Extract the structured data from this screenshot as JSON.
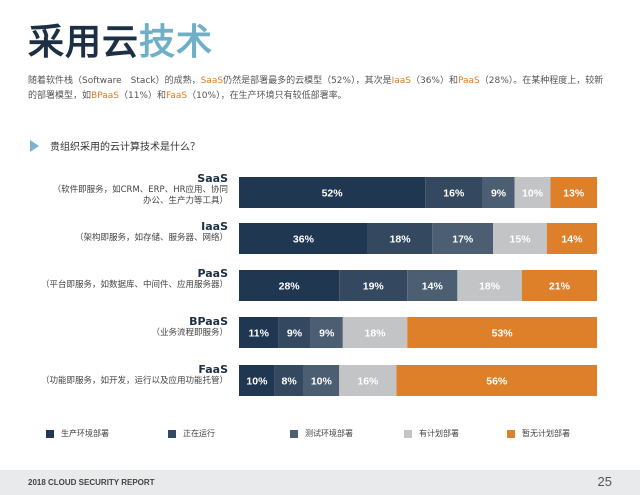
{
  "header": {
    "title_part1": "采用云",
    "title_part2": "技术"
  },
  "intro": {
    "s1": "随着软件栈（Software　Stack）的成熟，",
    "h1": "SaaS",
    "s2": "仍然是部署最多的云模型（52%），其次是",
    "h2": "IaaS",
    "s3": "（36%）和",
    "h3": "PaaS",
    "s4": "（28%）。在某种程度上，较新的部署模型，如",
    "h4": "BPaaS",
    "s5": "（11%）和",
    "h5": "FaaS",
    "s6": "（10%），在生产环境只有较低部署率。"
  },
  "question": "贵组织采用的云计算技术是什么？",
  "rows": [
    {
      "name": "SaaS",
      "desc1": "（软件即服务，如CRM、ERP、HR应用、协同",
      "desc2": "办公、生产力等工具）"
    },
    {
      "name": "IaaS",
      "desc1": "（架构即服务，如存储、服务器、网络）",
      "desc2": ""
    },
    {
      "name": "PaaS",
      "desc1": "（平台即服务，如数据库、中间件、应用服务器）",
      "desc2": ""
    },
    {
      "name": "BPaaS",
      "desc1": "（业务流程即服务）",
      "desc2": ""
    },
    {
      "name": "FaaS",
      "desc1": "（功能即服务，如开发，运行以及应用功能托管）",
      "desc2": ""
    }
  ],
  "colors": {
    "production": "#1f3750",
    "running": "#34495f",
    "testing": "#4b5e72",
    "planned": "#c3c4c6",
    "no_plan": "#de7f2a",
    "title_dark": "#1c2f44",
    "title_light": "#6fb0c8",
    "highlight": "#e07b24"
  },
  "chart_data": {
    "type": "bar",
    "orientation": "horizontal",
    "stacked": true,
    "title": "贵组织采用的云计算技术是什么？",
    "categories": [
      "SaaS",
      "IaaS",
      "PaaS",
      "BPaaS",
      "FaaS"
    ],
    "series": [
      {
        "name": "生产环境部署",
        "values": [
          52,
          36,
          28,
          11,
          10
        ]
      },
      {
        "name": "正在运行",
        "values": [
          16,
          18,
          19,
          9,
          8
        ]
      },
      {
        "name": "测试环境部署",
        "values": [
          9,
          17,
          14,
          9,
          10
        ]
      },
      {
        "name": "有计划部署",
        "values": [
          10,
          15,
          18,
          18,
          16
        ]
      },
      {
        "name": "暂无计划部署",
        "values": [
          13,
          14,
          21,
          53,
          56
        ]
      }
    ],
    "value_suffix": "%",
    "xlabel": "",
    "ylabel": "",
    "xlim": [
      0,
      100
    ],
    "grid": false,
    "legend_position": "bottom"
  },
  "footer": {
    "report": "2018 CLOUD SECURITY REPORT",
    "page": "25"
  }
}
